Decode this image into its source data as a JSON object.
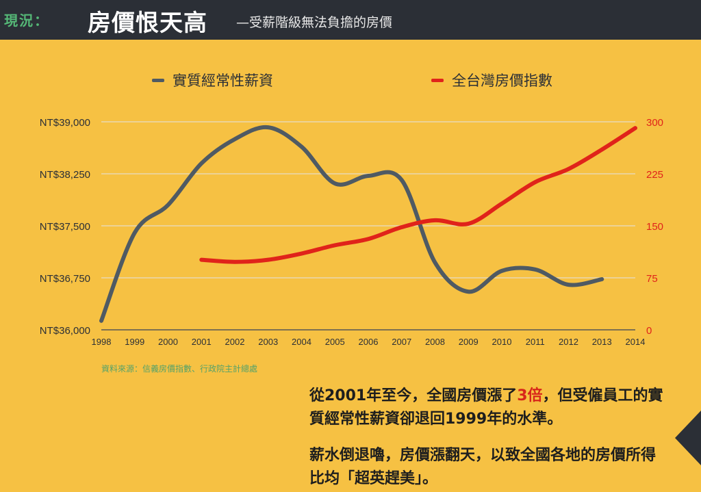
{
  "header": {
    "label": "現況：",
    "title": "房價恨天高",
    "subtitle": "—受薪階級無法負擔的房價"
  },
  "chart_data": {
    "type": "line",
    "x": [
      1998,
      1999,
      2000,
      2001,
      2002,
      2003,
      2004,
      2005,
      2006,
      2007,
      2008,
      2009,
      2010,
      2011,
      2012,
      2013,
      2014
    ],
    "x_tick_labels": [
      "1998",
      "1999",
      "2000",
      "2001",
      "2002",
      "2003",
      "2004",
      "2005",
      "2006",
      "2007",
      "2008",
      "2009",
      "2010",
      "2011",
      "2012",
      "2013",
      "2014"
    ],
    "left_axis": {
      "ylim": [
        36000,
        39000
      ],
      "tick_labels": [
        "NT$36,000",
        "NT$36,750",
        "NT$37,500",
        "NT$38,250",
        "NT$39,000"
      ],
      "ticks": [
        36000,
        36750,
        37500,
        38250,
        39000
      ]
    },
    "right_axis": {
      "ylim": [
        0,
        300
      ],
      "tick_labels": [
        "0",
        "75",
        "150",
        "225",
        "300"
      ],
      "ticks": [
        0,
        75,
        150,
        225,
        300
      ]
    },
    "grid": true,
    "legend_position": "top",
    "series": [
      {
        "name": "實質經常性薪資",
        "axis": "left",
        "color": "#4f5a63",
        "x": [
          1998,
          1999,
          2000,
          2001,
          2002,
          2003,
          2004,
          2005,
          2006,
          2007,
          2008,
          2009,
          2010,
          2011,
          2012,
          2013
        ],
        "values": [
          36130,
          37400,
          37800,
          38400,
          38750,
          38920,
          38640,
          38110,
          38220,
          38160,
          36970,
          36550,
          36850,
          36870,
          36650,
          36730
        ]
      },
      {
        "name": "全台灣房價指數",
        "axis": "right",
        "color": "#e0231a",
        "x": [
          2001,
          2002,
          2003,
          2004,
          2005,
          2006,
          2007,
          2008,
          2009,
          2010,
          2011,
          2012,
          2013,
          2014
        ],
        "values": [
          101,
          98,
          101,
          110,
          122,
          131,
          148,
          158,
          153,
          182,
          213,
          232,
          260,
          291
        ]
      }
    ]
  },
  "source": "資料來源：信義房價指數、行政院主計總處",
  "body": {
    "p1_a": "從2001年至今，全國房價漲了",
    "p1_highlight": "3倍",
    "p1_b": "，但受僱員工的實質經常性薪資卻退回1999年的水準。",
    "p2": "薪水倒退嚕，房價漲翻天，以致全國各地的房價所得比均「超英趕美」。"
  },
  "colors": {
    "background": "#f6c143",
    "header": "#2b2f36",
    "wage": "#4f5a63",
    "house": "#e0231a",
    "highlight": "#d8261a"
  }
}
